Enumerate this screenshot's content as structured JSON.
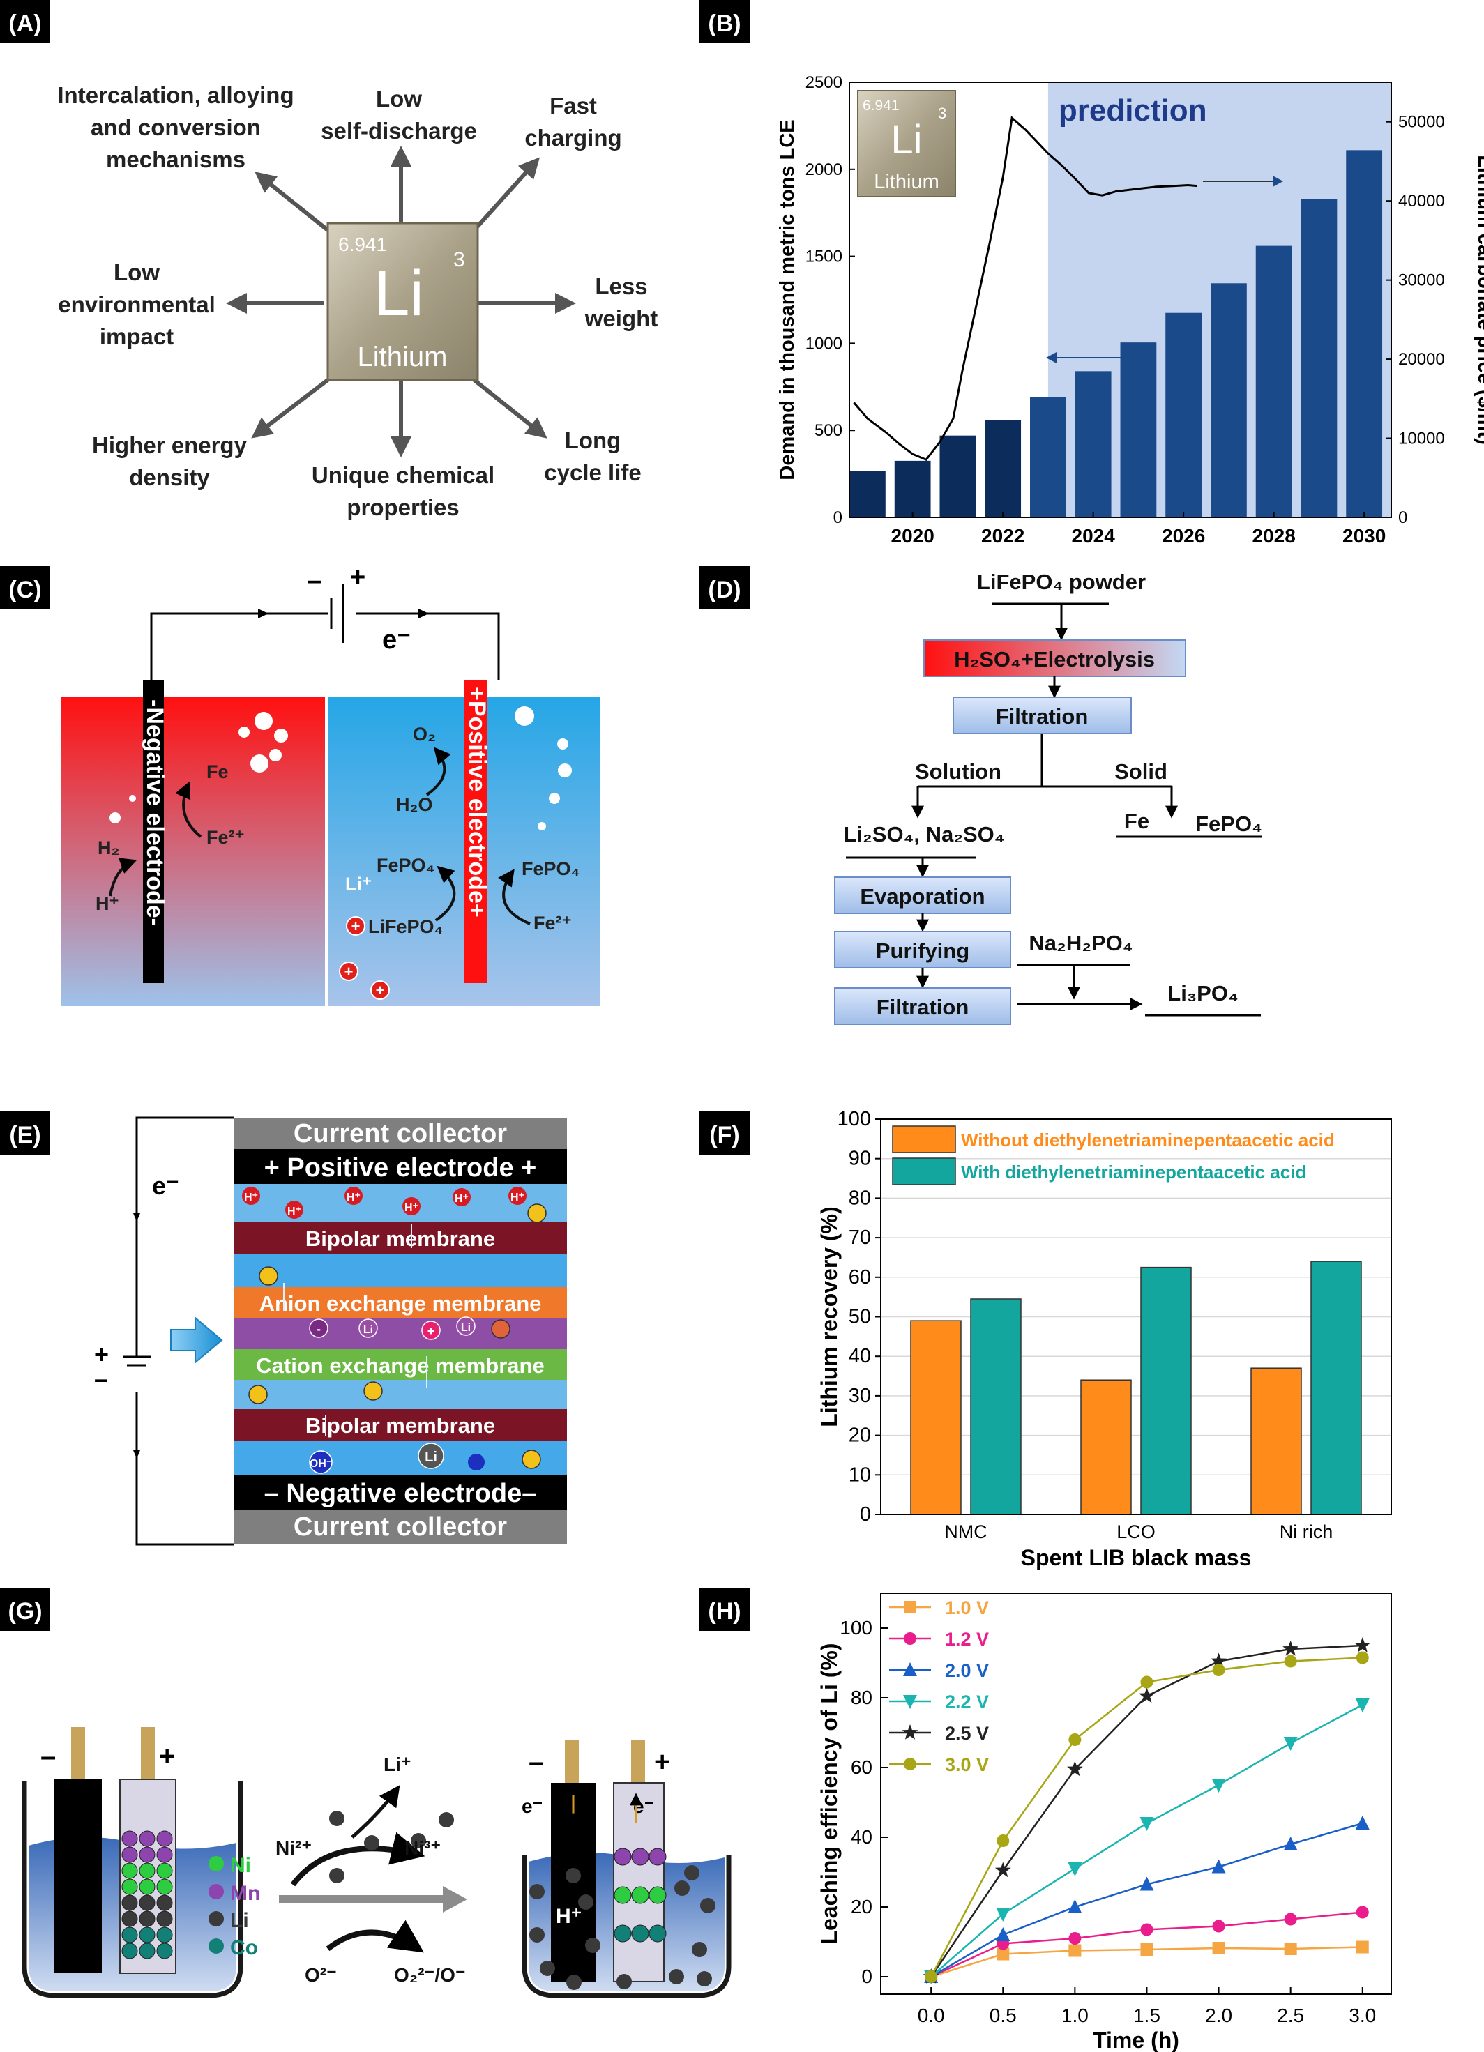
{
  "panels": {
    "a": {
      "label": "(A)",
      "element": {
        "mass": "6.941",
        "number": "3",
        "symbol": "Li",
        "name": "Lithium"
      },
      "features": [
        [
          "Intercalation, alloying",
          "and conversion",
          "mechanisms"
        ],
        [
          "Low",
          "self-discharge"
        ],
        [
          "Fast",
          "charging"
        ],
        [
          "Low",
          "environmental",
          "impact"
        ],
        [
          "Less",
          "weight"
        ],
        [
          "Higher energy",
          "density"
        ],
        [
          "Unique chemical",
          "properties"
        ],
        [
          "Long",
          "cycle life"
        ]
      ]
    },
    "b": {
      "label": "(B)",
      "prediction_label": "prediction",
      "element": {
        "mass": "6.941",
        "number": "3",
        "symbol": "Li",
        "name": "Lithium"
      }
    },
    "c": {
      "label": "(C)",
      "battery_minus": "–",
      "battery_plus": "+",
      "electron": "e⁻",
      "neg_electrode": "-Negative electrode-",
      "pos_electrode": "+Positive electrode+",
      "fe": "Fe",
      "fe2": "Fe²⁺",
      "h2": "H₂",
      "hplus": "H⁺",
      "o2": "O₂",
      "h2o": "H₂O",
      "fepo4_left": "FePO₄",
      "lifepo4": "LiFePO₄",
      "li_plus": "Li⁺",
      "fepo4_right": "FePO₄",
      "fe2_right": "Fe²⁺",
      "ion_plus": "+"
    },
    "d": {
      "label": "(D)",
      "start": "LiFePO₄ powder",
      "step1": "H₂SO₄+Electrolysis",
      "step2": "Filtration",
      "solution": "Solution",
      "solid": "Solid",
      "sol_products": "Li₂SO₄, Na₂SO₄",
      "solid_fe": "Fe",
      "solid_fepo4": "FePO₄",
      "evap": "Evaporation",
      "purify": "Purifying",
      "filt2": "Filtration",
      "reagent": "Na₂H₂PO₄",
      "product": "Li₃PO₄"
    },
    "e": {
      "label": "(E)",
      "top_cc": "Current collector",
      "pos": "+ Positive electrode +",
      "bipolar1": "Bipolar membrane",
      "aem": "Anion exchange membrane",
      "cem": "Cation exchange membrane",
      "bipolar2": "Bipolar membrane",
      "neg": "– Negative electrode–",
      "bot_cc": "Current collector",
      "electron": "e⁻",
      "plus": "+",
      "minus": "–",
      "h_plus": "H⁺",
      "oh_minus": "OH⁻",
      "li": "Li",
      "minus_ion": "-",
      "plus_ion": "+"
    },
    "f": {
      "label": "(F)"
    },
    "g": {
      "label": "(G)",
      "minus": "–",
      "plus": "+",
      "legend": [
        {
          "name": "Ni",
          "color": "#2ecc40"
        },
        {
          "name": "Mn",
          "color": "#8e44ad"
        },
        {
          "name": "Li",
          "color": "#3a3a3a"
        },
        {
          "name": "Co",
          "color": "#138078"
        }
      ],
      "li_plus": "Li⁺",
      "ni2": "Ni²⁺",
      "ni3": "Ni³⁺",
      "o2m": "O²⁻",
      "o22m": "O₂²⁻/O⁻",
      "e_left": "e⁻",
      "e_right": "e⁻",
      "h_plus": "H⁺"
    },
    "h": {
      "label": "(H)"
    }
  },
  "chart_data": [
    {
      "id": "B",
      "type": "bar+line",
      "categories": [
        "2019",
        "2020",
        "2021",
        "2022",
        "2023",
        "2024",
        "2025",
        "2026",
        "2027",
        "2028",
        "2029",
        "2030"
      ],
      "x_ticks": [
        "2020",
        "2022",
        "2024",
        "2026",
        "2028",
        "2030"
      ],
      "series": [
        {
          "axis": "left",
          "values": [
            265,
            325,
            470,
            560,
            690,
            840,
            1005,
            1175,
            1345,
            1560,
            1830,
            2110
          ]
        }
      ],
      "line": {
        "axis": "right",
        "x": [
          2018.7,
          2019.0,
          2019.4,
          2019.7,
          2020.0,
          2020.3,
          2020.6,
          2020.9,
          2021.1,
          2021.4,
          2021.7,
          2022.0,
          2022.2,
          2022.5,
          2022.8,
          2023.0,
          2023.3,
          2023.6,
          2023.9,
          2024.2,
          2024.5,
          2024.8,
          2025.1,
          2025.4,
          2025.8,
          2026.1,
          2026.3
        ],
        "y": [
          14500,
          12500,
          10800,
          9300,
          8000,
          7300,
          9500,
          12500,
          18500,
          26500,
          34500,
          43000,
          50500,
          49000,
          47200,
          46000,
          44500,
          42800,
          41000,
          40700,
          41200,
          41400,
          41600,
          41800,
          41900,
          42000,
          41900
        ]
      },
      "ylabel_left": "Demand in thousand metric tons LCE",
      "ylabel_right": "Lithium carbonate price ($/mt)",
      "yticks_left": [
        "0",
        "500",
        "1000",
        "1500",
        "2000",
        "2500"
      ],
      "yticks_right": [
        "0",
        "10000",
        "20000",
        "30000",
        "40000",
        "50000"
      ],
      "ylim_left": [
        0,
        2500
      ],
      "ylim_right": [
        0,
        55000
      ],
      "xlim": [
        2018.6,
        2030.6
      ],
      "prediction_from": 2023
    },
    {
      "id": "F",
      "type": "bar",
      "categories": [
        "NMC",
        "LCO",
        "Ni rich"
      ],
      "series": [
        {
          "name": "Without diethylenetriaminepentaacetic acid",
          "color": "#ff8c1a",
          "values": [
            49,
            34,
            37
          ]
        },
        {
          "name": "With diethylenetriaminepentaacetic acid",
          "color": "#13a69e",
          "values": [
            54.5,
            62.5,
            64
          ]
        }
      ],
      "xlabel": "Spent LIB black mass",
      "ylabel": "Lithium recovery (%)",
      "ylim": [
        0,
        100
      ],
      "yticks": [
        "0",
        "10",
        "20",
        "30",
        "40",
        "50",
        "60",
        "70",
        "80",
        "90",
        "100"
      ]
    },
    {
      "id": "H",
      "type": "line",
      "x": [
        0,
        0.5,
        1.0,
        1.5,
        2.0,
        2.5,
        3.0
      ],
      "x_ticks": [
        "0.0",
        "0.5",
        "1.0",
        "1.5",
        "2.0",
        "2.5",
        "3.0"
      ],
      "series": [
        {
          "name": "1.0 V",
          "color": "#f5a542",
          "marker": "square",
          "values": [
            0,
            6.5,
            7.5,
            7.8,
            8.2,
            8.0,
            8.5
          ]
        },
        {
          "name": "1.2 V",
          "color": "#e91e8c",
          "marker": "circle",
          "values": [
            0,
            9.5,
            11,
            13.5,
            14.5,
            16.5,
            18.5
          ]
        },
        {
          "name": "2.0 V",
          "color": "#1a5fc7",
          "marker": "triangle-up",
          "values": [
            0,
            12,
            20,
            26.5,
            31.5,
            38,
            44
          ]
        },
        {
          "name": "2.2 V",
          "color": "#1ab5b0",
          "marker": "triangle-down",
          "values": [
            0,
            18,
            31,
            44,
            55,
            67,
            78
          ]
        },
        {
          "name": "2.5 V",
          "color": "#222222",
          "marker": "star",
          "values": [
            0,
            30.5,
            59.5,
            80.5,
            90.5,
            94,
            95
          ]
        },
        {
          "name": "3.0 V",
          "color": "#a8a614",
          "marker": "circle",
          "values": [
            0,
            39,
            68,
            84.5,
            88,
            90.5,
            91.5
          ]
        }
      ],
      "xlabel": "Time (h)",
      "ylabel": "Leaching efficiency of Li (%)",
      "ylim": [
        -5,
        110
      ],
      "xlim": [
        -0.35,
        3.2
      ],
      "yticks": [
        "0",
        "20",
        "40",
        "60",
        "80",
        "100"
      ]
    }
  ]
}
